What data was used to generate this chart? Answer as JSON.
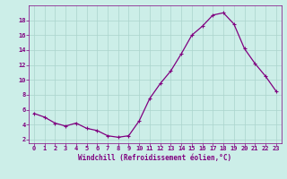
{
  "x": [
    0,
    1,
    2,
    3,
    4,
    5,
    6,
    7,
    8,
    9,
    10,
    11,
    12,
    13,
    14,
    15,
    16,
    17,
    18,
    19,
    20,
    21,
    22,
    23
  ],
  "y": [
    5.5,
    5.0,
    4.2,
    3.8,
    4.2,
    3.5,
    3.2,
    2.5,
    2.3,
    2.5,
    4.5,
    7.5,
    9.5,
    11.2,
    13.5,
    16.0,
    17.2,
    18.7,
    19.0,
    17.5,
    14.2,
    12.2,
    10.5,
    8.5
  ],
  "line_color": "#800080",
  "marker": "+",
  "marker_size": 3,
  "marker_lw": 0.8,
  "line_width": 0.9,
  "bg_color": "#cceee8",
  "grid_color": "#aad4cc",
  "xlabel": "Windchill (Refroidissement éolien,°C)",
  "xlabel_color": "#800080",
  "tick_color": "#800080",
  "xlim": [
    -0.5,
    23.5
  ],
  "ylim": [
    1.5,
    20.0
  ],
  "yticks": [
    2,
    4,
    6,
    8,
    10,
    12,
    14,
    16,
    18
  ],
  "xticks": [
    0,
    1,
    2,
    3,
    4,
    5,
    6,
    7,
    8,
    9,
    10,
    11,
    12,
    13,
    14,
    15,
    16,
    17,
    18,
    19,
    20,
    21,
    22,
    23
  ],
  "xlabel_fontsize": 5.5,
  "tick_fontsize": 5
}
